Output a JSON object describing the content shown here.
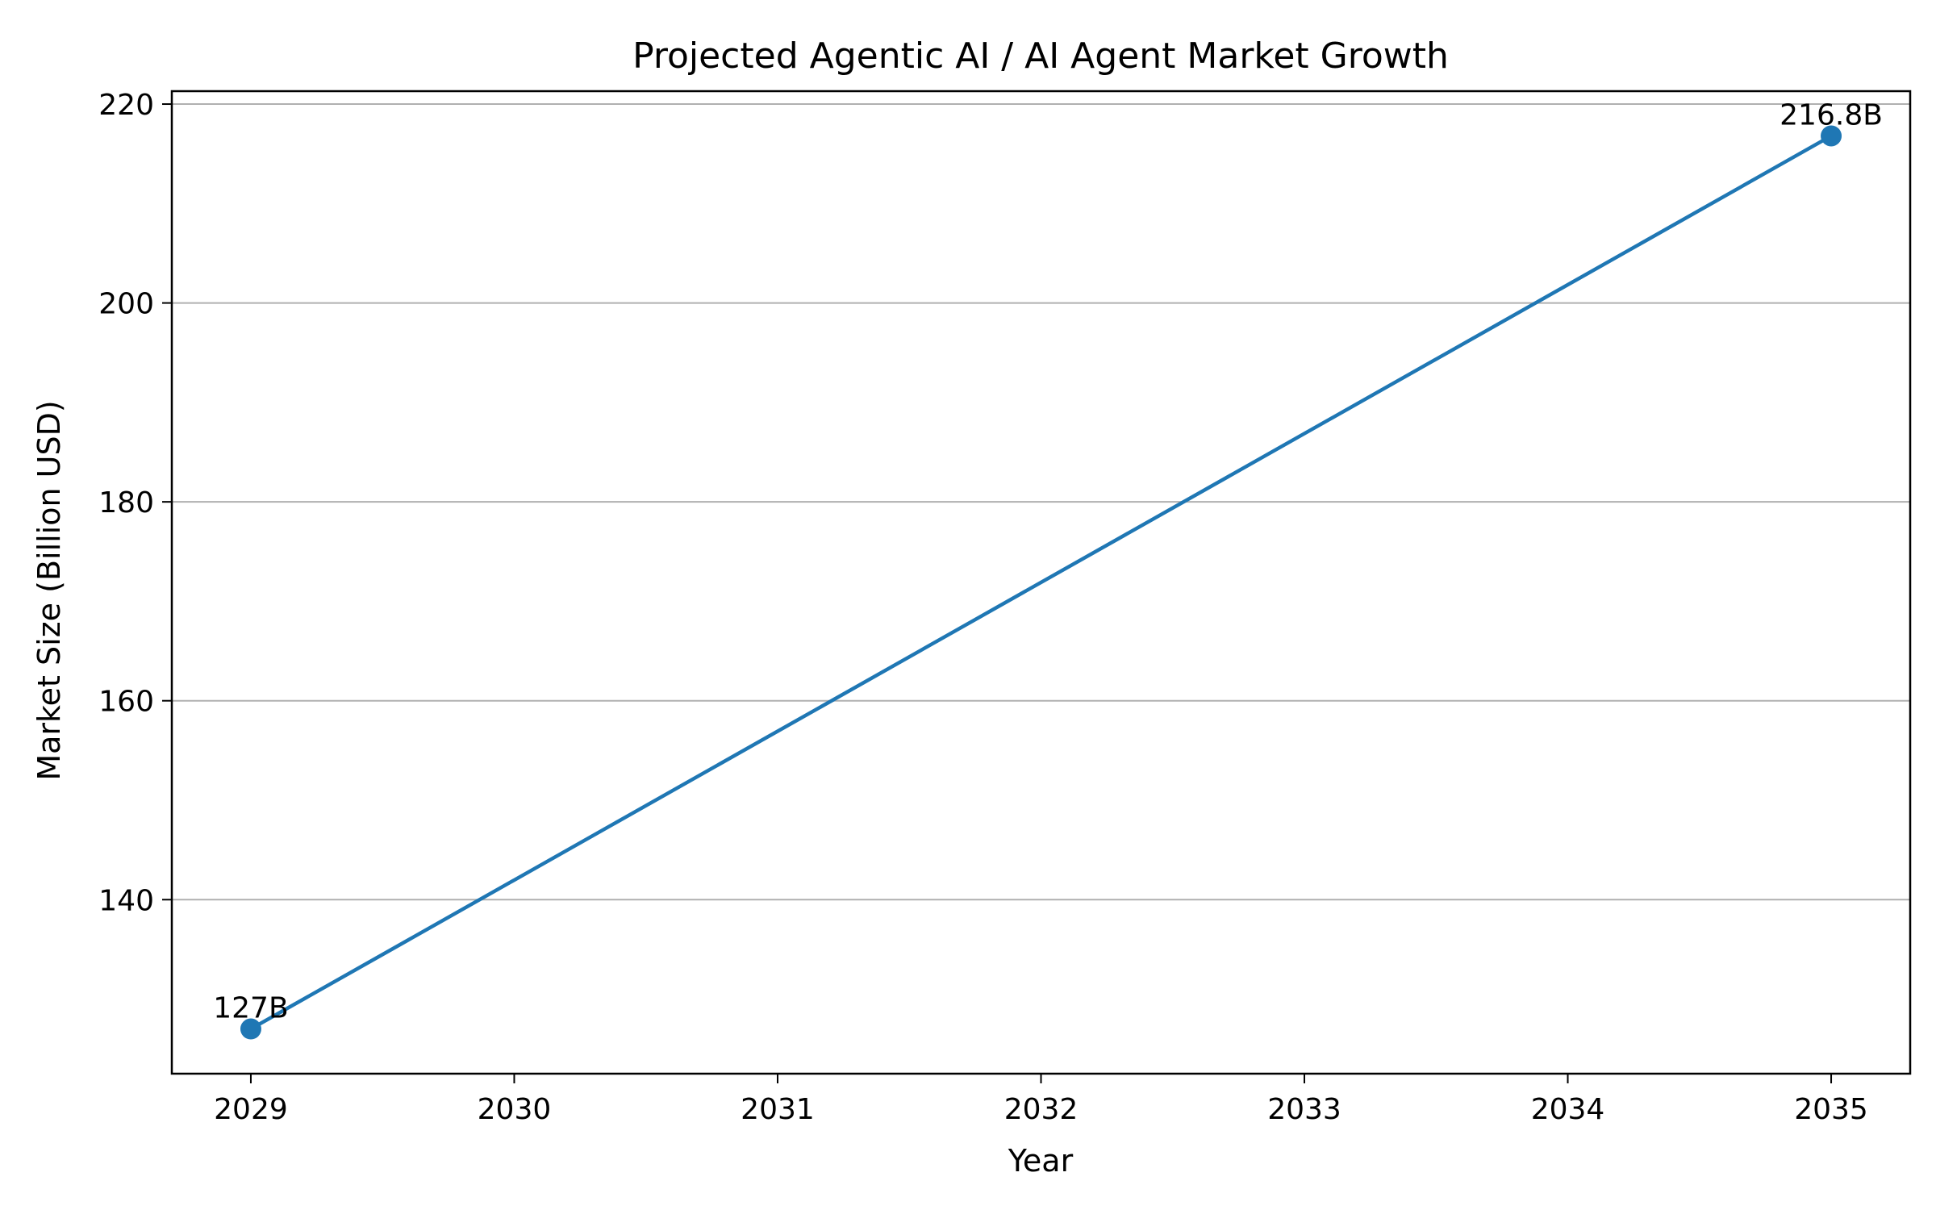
{
  "chart_data": {
    "type": "line",
    "title": "Projected Agentic AI / AI Agent Market Growth",
    "xlabel": "Year",
    "ylabel": "Market Size (Billion USD)",
    "x": [
      2029,
      2035
    ],
    "x_ticks": [
      2029,
      2030,
      2031,
      2032,
      2033,
      2034,
      2035
    ],
    "xlim": [
      2028.7,
      2035.3
    ],
    "y_ticks": [
      140,
      160,
      180,
      200,
      220
    ],
    "ylim": [
      122.5,
      221.3
    ],
    "grid": "horizontal",
    "series": [
      {
        "values": [
          127,
          216.8
        ],
        "labels": [
          "127B",
          "216.8B"
        ],
        "color": "#1f77b4"
      }
    ]
  }
}
